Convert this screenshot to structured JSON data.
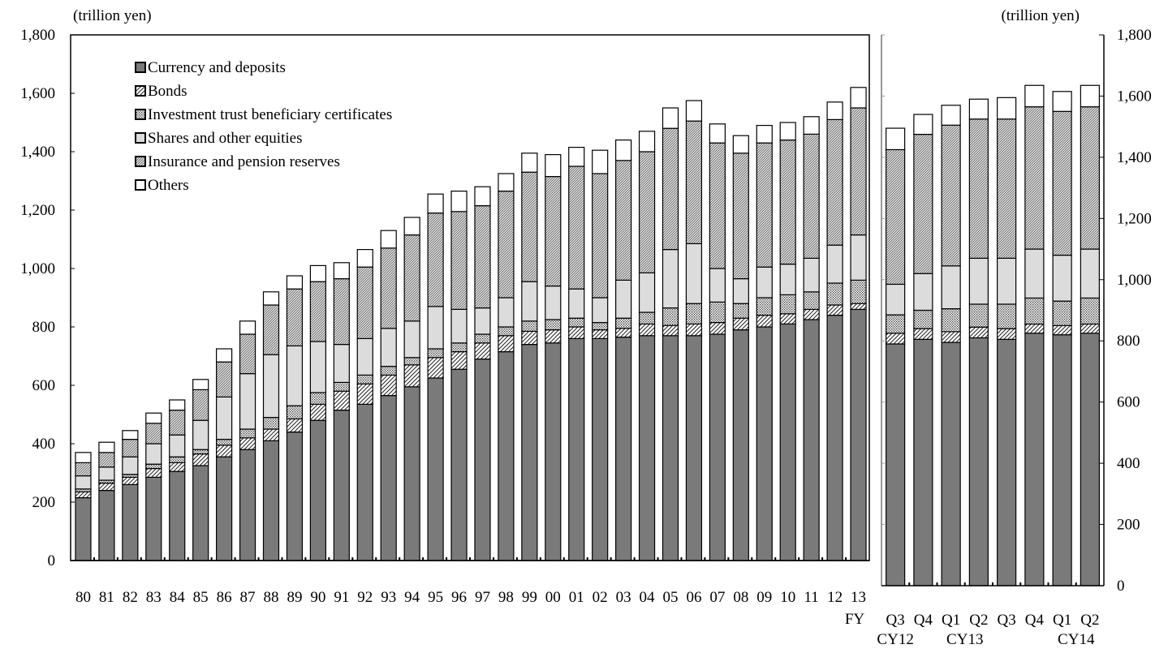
{
  "chart_data": [
    {
      "type": "bar",
      "stacked": true,
      "unit_label": "(trillion yen)",
      "x_suffix_label": "FY",
      "categories": [
        "80",
        "81",
        "82",
        "83",
        "84",
        "85",
        "86",
        "87",
        "88",
        "89",
        "90",
        "91",
        "92",
        "93",
        "94",
        "95",
        "96",
        "97",
        "98",
        "99",
        "00",
        "01",
        "02",
        "03",
        "04",
        "05",
        "06",
        "07",
        "08",
        "09",
        "10",
        "11",
        "12",
        "13"
      ],
      "ylim": [
        0,
        1800
      ],
      "yticks": [
        0,
        200,
        400,
        600,
        800,
        1000,
        1200,
        1400,
        1600,
        1800
      ],
      "ytick_labels": [
        "0",
        "200",
        "400",
        "600",
        "800",
        "1,000",
        "1,200",
        "1,400",
        "1,600",
        "1,800"
      ],
      "legend_position": "top-left",
      "series": [
        {
          "name": "Currency and deposits",
          "values": [
            215,
            240,
            260,
            285,
            305,
            325,
            355,
            380,
            410,
            440,
            480,
            515,
            535,
            565,
            595,
            625,
            655,
            690,
            715,
            740,
            745,
            760,
            760,
            765,
            770,
            770,
            770,
            775,
            790,
            800,
            810,
            825,
            840,
            860
          ]
        },
        {
          "name": "Bonds",
          "values": [
            20,
            25,
            25,
            30,
            30,
            40,
            40,
            40,
            40,
            45,
            55,
            65,
            70,
            70,
            75,
            70,
            60,
            55,
            55,
            45,
            45,
            40,
            30,
            30,
            40,
            35,
            40,
            40,
            40,
            40,
            35,
            35,
            35,
            20
          ]
        },
        {
          "name": "Investment trust beneficiary certificates",
          "values": [
            10,
            10,
            10,
            15,
            20,
            15,
            20,
            30,
            40,
            45,
            40,
            30,
            30,
            30,
            25,
            30,
            30,
            30,
            30,
            35,
            35,
            30,
            25,
            35,
            40,
            60,
            70,
            70,
            50,
            60,
            65,
            60,
            75,
            80
          ]
        },
        {
          "name": "Shares and other equities",
          "values": [
            45,
            45,
            60,
            70,
            75,
            100,
            145,
            190,
            215,
            205,
            175,
            130,
            125,
            130,
            125,
            145,
            115,
            90,
            100,
            135,
            115,
            100,
            85,
            130,
            135,
            200,
            205,
            115,
            85,
            105,
            105,
            115,
            130,
            155
          ]
        },
        {
          "name": "Insurance and pension reserves",
          "values": [
            45,
            50,
            60,
            70,
            85,
            105,
            120,
            135,
            170,
            195,
            205,
            225,
            245,
            275,
            295,
            320,
            335,
            350,
            365,
            375,
            375,
            420,
            425,
            410,
            415,
            415,
            420,
            430,
            430,
            425,
            425,
            425,
            430,
            435
          ]
        },
        {
          "name": "Others",
          "values": [
            35,
            35,
            30,
            35,
            35,
            35,
            45,
            45,
            45,
            45,
            55,
            55,
            60,
            60,
            60,
            65,
            70,
            65,
            60,
            65,
            75,
            65,
            80,
            70,
            70,
            70,
            70,
            65,
            60,
            60,
            60,
            60,
            60,
            70
          ]
        }
      ]
    },
    {
      "type": "bar",
      "stacked": true,
      "unit_label": "(trillion yen)",
      "categories": [
        "Q3",
        "Q4",
        "Q1",
        "Q2",
        "Q3",
        "Q4",
        "Q1",
        "Q2"
      ],
      "group_labels": [
        {
          "label": "CY12",
          "at": 0
        },
        {
          "label": "CY13",
          "at": 2.5
        },
        {
          "label": "CY14",
          "at": 6.5
        }
      ],
      "ylim": [
        0,
        1800
      ],
      "yticks": [
        0,
        200,
        400,
        600,
        800,
        1000,
        1200,
        1400,
        1600,
        1800
      ],
      "ytick_labels": [
        "0",
        "200",
        "400",
        "600",
        "800",
        "1,000",
        "1,200",
        "1,400",
        "1,600",
        "1,800"
      ],
      "series": [
        {
          "name": "Currency and deposits",
          "values": [
            790,
            805,
            795,
            810,
            805,
            825,
            820,
            825
          ]
        },
        {
          "name": "Bonds",
          "values": [
            35,
            35,
            35,
            35,
            35,
            30,
            30,
            30
          ]
        },
        {
          "name": "Investment trust beneficiary certificates",
          "values": [
            60,
            60,
            75,
            75,
            80,
            85,
            80,
            85
          ]
        },
        {
          "name": "Shares and other equities",
          "values": [
            100,
            120,
            140,
            150,
            150,
            160,
            150,
            160
          ]
        },
        {
          "name": "Insurance and pension reserves",
          "values": [
            440,
            455,
            460,
            455,
            455,
            465,
            470,
            465
          ]
        },
        {
          "name": "Others",
          "values": [
            70,
            65,
            65,
            65,
            70,
            70,
            65,
            70
          ]
        }
      ]
    }
  ],
  "series_style": [
    {
      "fill": "#7a7a7a",
      "pattern": "solid"
    },
    {
      "fill": "#ffffff",
      "pattern": "diag-wide"
    },
    {
      "fill": "#ffffff",
      "pattern": "dots"
    },
    {
      "fill": "#dcdcdc",
      "pattern": "solid"
    },
    {
      "fill": "#ffffff",
      "pattern": "diag-fine"
    },
    {
      "fill": "#ffffff",
      "pattern": "solid"
    }
  ]
}
